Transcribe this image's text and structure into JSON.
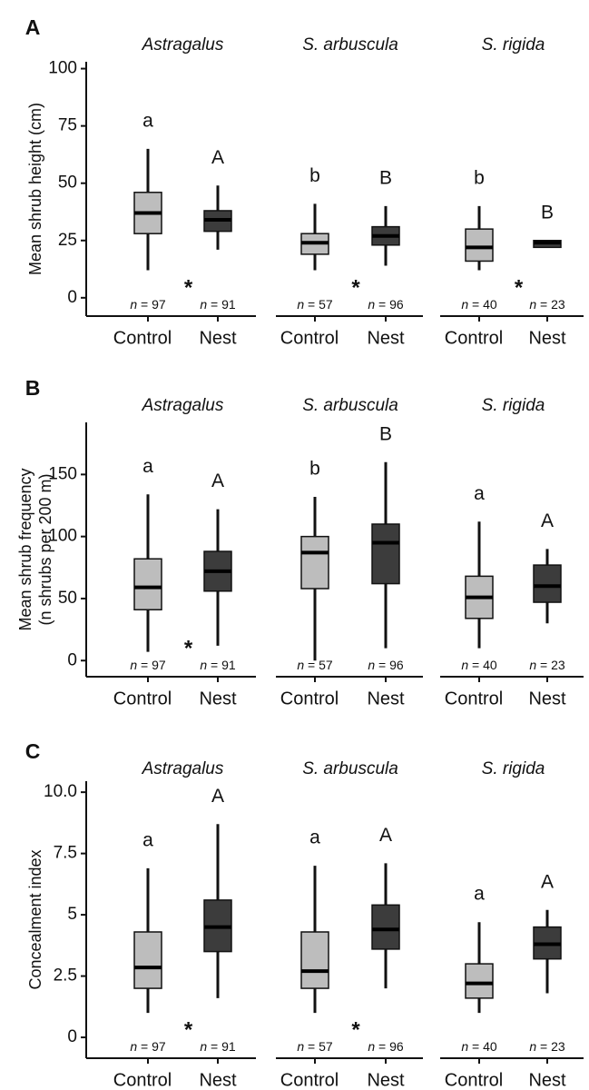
{
  "chart_data": [
    {
      "type": "box",
      "panel": "A",
      "y_label": [
        "Mean shrub height (cm)"
      ],
      "ylim": [
        -8,
        103
      ],
      "yticks": [
        0,
        25,
        50,
        75,
        100
      ],
      "facets": [
        {
          "title": "Astragalus",
          "categories": [
            "Control",
            "Nest"
          ],
          "n_labels": [
            "n = 97",
            "n = 91"
          ],
          "letters": [
            "a",
            "A"
          ],
          "asterisk": "*",
          "boxes": [
            {
              "whisker_low": 12,
              "q1": 28,
              "median": 37,
              "q3": 46,
              "whisker_high": 65,
              "color": "#bdbdbd"
            },
            {
              "whisker_low": 21,
              "q1": 29,
              "median": 34,
              "q3": 38,
              "whisker_high": 49,
              "color": "#3c3c3c"
            }
          ]
        },
        {
          "title": "S. arbuscula",
          "categories": [
            "Control",
            "Nest"
          ],
          "n_labels": [
            "n = 57",
            "n = 96"
          ],
          "letters": [
            "b",
            "B"
          ],
          "asterisk": "*",
          "boxes": [
            {
              "whisker_low": 12,
              "q1": 19,
              "median": 24,
              "q3": 28,
              "whisker_high": 41,
              "color": "#bdbdbd"
            },
            {
              "whisker_low": 14,
              "q1": 23,
              "median": 27,
              "q3": 31,
              "whisker_high": 40,
              "color": "#3c3c3c"
            }
          ]
        },
        {
          "title": "S. rigida",
          "categories": [
            "Control",
            "Nest"
          ],
          "n_labels": [
            "n = 40",
            "n = 23"
          ],
          "letters": [
            "b",
            "B"
          ],
          "asterisk": "*",
          "boxes": [
            {
              "whisker_low": 12,
              "q1": 16,
              "median": 22,
              "q3": 30,
              "whisker_high": 40,
              "color": "#bdbdbd"
            },
            {
              "whisker_low": 22,
              "q1": 22,
              "median": 24,
              "q3": 25,
              "whisker_high": 25,
              "color": "#3c3c3c"
            }
          ]
        }
      ]
    },
    {
      "type": "box",
      "panel": "B",
      "y_label": [
        "Mean shrub frequency",
        "(n shrubs per 200 m)"
      ],
      "ylim": [
        -13,
        192
      ],
      "yticks": [
        0,
        50,
        100,
        150
      ],
      "facets": [
        {
          "title": "Astragalus",
          "categories": [
            "Control",
            "Nest"
          ],
          "n_labels": [
            "n = 97",
            "n = 91"
          ],
          "letters": [
            "a",
            "A"
          ],
          "asterisk": "*",
          "boxes": [
            {
              "whisker_low": 7,
              "q1": 41,
              "median": 59,
              "q3": 82,
              "whisker_high": 134,
              "color": "#bdbdbd"
            },
            {
              "whisker_low": 12,
              "q1": 56,
              "median": 72,
              "q3": 88,
              "whisker_high": 122,
              "color": "#3c3c3c"
            }
          ]
        },
        {
          "title": "S. arbuscula",
          "categories": [
            "Control",
            "Nest"
          ],
          "n_labels": [
            "n = 57",
            "n = 96"
          ],
          "letters": [
            "b",
            "B"
          ],
          "boxes": [
            {
              "whisker_low": 0,
              "q1": 58,
              "median": 87,
              "q3": 100,
              "whisker_high": 132,
              "color": "#bdbdbd"
            },
            {
              "whisker_low": 10,
              "q1": 62,
              "median": 95,
              "q3": 110,
              "whisker_high": 160,
              "color": "#3c3c3c"
            }
          ]
        },
        {
          "title": "S. rigida",
          "categories": [
            "Control",
            "Nest"
          ],
          "n_labels": [
            "n = 40",
            "n = 23"
          ],
          "letters": [
            "a",
            "A"
          ],
          "boxes": [
            {
              "whisker_low": 10,
              "q1": 34,
              "median": 51,
              "q3": 68,
              "whisker_high": 112,
              "color": "#bdbdbd"
            },
            {
              "whisker_low": 30,
              "q1": 47,
              "median": 60,
              "q3": 77,
              "whisker_high": 90,
              "color": "#3c3c3c"
            }
          ]
        }
      ]
    },
    {
      "type": "box",
      "panel": "C",
      "y_label": [
        "Concealment index"
      ],
      "ylim": [
        -0.85,
        10.45
      ],
      "yticks": [
        0,
        2.5,
        5,
        7.5,
        {
          "value": 10,
          "label": "10.0"
        }
      ],
      "facets": [
        {
          "title": "Astragalus",
          "categories": [
            "Control",
            "Nest"
          ],
          "n_labels": [
            "n = 97",
            "n = 91"
          ],
          "letters": [
            "a",
            "A"
          ],
          "asterisk": "*",
          "boxes": [
            {
              "whisker_low": 1.0,
              "q1": 2.0,
              "median": 2.85,
              "q3": 4.3,
              "whisker_high": 6.9,
              "color": "#bdbdbd"
            },
            {
              "whisker_low": 1.6,
              "q1": 3.5,
              "median": 4.5,
              "q3": 5.6,
              "whisker_high": 8.7,
              "color": "#3c3c3c"
            }
          ]
        },
        {
          "title": "S. arbuscula",
          "categories": [
            "Control",
            "Nest"
          ],
          "n_labels": [
            "n = 57",
            "n = 96"
          ],
          "letters": [
            "a",
            "A"
          ],
          "asterisk": "*",
          "boxes": [
            {
              "whisker_low": 1.0,
              "q1": 2.0,
              "median": 2.7,
              "q3": 4.3,
              "whisker_high": 7.0,
              "color": "#bdbdbd"
            },
            {
              "whisker_low": 2.0,
              "q1": 3.6,
              "median": 4.4,
              "q3": 5.4,
              "whisker_high": 7.1,
              "color": "#3c3c3c"
            }
          ]
        },
        {
          "title": "S. rigida",
          "categories": [
            "Control",
            "Nest"
          ],
          "n_labels": [
            "n = 40",
            "n = 23"
          ],
          "letters": [
            "a",
            "A"
          ],
          "boxes": [
            {
              "whisker_low": 1.0,
              "q1": 1.6,
              "median": 2.2,
              "q3": 3.0,
              "whisker_high": 4.7,
              "color": "#bdbdbd"
            },
            {
              "whisker_low": 1.8,
              "q1": 3.2,
              "median": 3.8,
              "q3": 4.5,
              "whisker_high": 5.2,
              "color": "#3c3c3c"
            }
          ]
        }
      ]
    }
  ]
}
